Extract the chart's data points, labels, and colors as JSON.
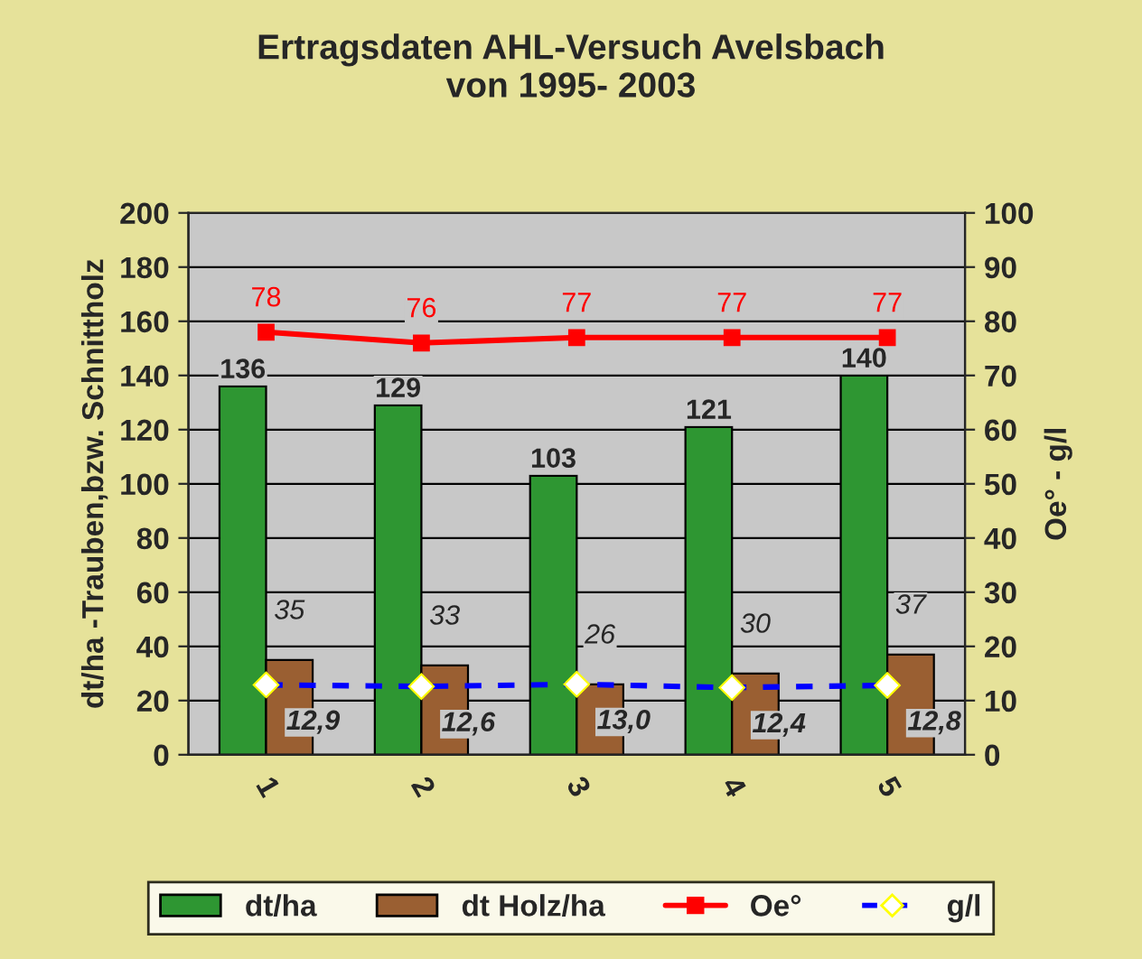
{
  "chart_data": {
    "type": "bar",
    "title": "Ertragsdaten AHL-Versuch Avelsbach\nvon 1995- 2003",
    "categories": [
      "1",
      "2",
      "3",
      "4",
      "5"
    ],
    "ylabel": "dt/ha -Trauben,bzw. Schnittholz",
    "y2label": "Oe° - g/l",
    "ylim": [
      0,
      200
    ],
    "yticks": [
      0,
      20,
      40,
      60,
      80,
      100,
      120,
      140,
      160,
      180,
      200
    ],
    "y2lim": [
      0,
      100
    ],
    "y2ticks": [
      0,
      10,
      20,
      30,
      40,
      50,
      60,
      70,
      80,
      90,
      100
    ],
    "grid": "y",
    "legend": "bottom",
    "series": [
      {
        "name": "dt/ha",
        "type": "bar",
        "color": "#2e9632",
        "values": [
          136,
          129,
          103,
          121,
          140
        ],
        "value_labels": [
          "136",
          "129",
          "103",
          "121",
          "140"
        ]
      },
      {
        "name": "dt Holz/ha",
        "type": "bar",
        "color": "#9a5f32",
        "values": [
          35,
          33,
          26,
          30,
          37
        ],
        "value_labels": [
          "35",
          "33",
          "26",
          "30",
          "37"
        ]
      },
      {
        "name": "Oe°",
        "type": "line",
        "axis": "y2",
        "color": "#ff0000",
        "marker": "square",
        "line_style": "solid",
        "values": [
          78,
          76,
          77,
          77,
          77
        ],
        "value_labels": [
          "78",
          "76",
          "77",
          "77",
          "77"
        ]
      },
      {
        "name": "g/l",
        "type": "line",
        "axis": "y2",
        "color": "#0000ff",
        "marker": "diamond",
        "line_style": "dashed",
        "values": [
          12.9,
          12.6,
          13.0,
          12.4,
          12.8
        ],
        "value_labels": [
          "12,9",
          "12,6",
          "13,0",
          "12,4",
          "12,8"
        ]
      }
    ]
  }
}
